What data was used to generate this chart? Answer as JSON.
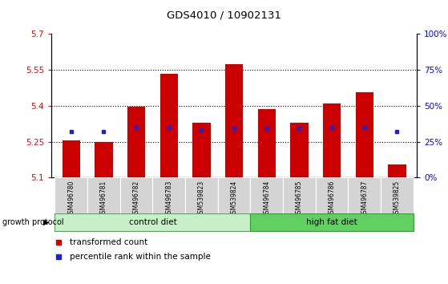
{
  "title": "GDS4010 / 10902131",
  "samples": [
    "GSM496780",
    "GSM496781",
    "GSM496782",
    "GSM496783",
    "GSM539823",
    "GSM539824",
    "GSM496784",
    "GSM496785",
    "GSM496786",
    "GSM496787",
    "GSM539825"
  ],
  "transformed_count": [
    5.255,
    5.25,
    5.395,
    5.535,
    5.33,
    5.575,
    5.385,
    5.33,
    5.41,
    5.455,
    5.155
  ],
  "percentile_rank": [
    32,
    32,
    35,
    35,
    33,
    34,
    34,
    34,
    35,
    35,
    32
  ],
  "ylim_left": [
    5.1,
    5.7
  ],
  "ylim_right": [
    0,
    100
  ],
  "yticks_left": [
    5.1,
    5.25,
    5.4,
    5.55,
    5.7
  ],
  "yticks_right": [
    0,
    25,
    50,
    75,
    100
  ],
  "ytick_labels_right": [
    "0%",
    "25%",
    "50%",
    "75%",
    "100%"
  ],
  "bar_color": "#cc0000",
  "percentile_color": "#2222cc",
  "bar_width": 0.55,
  "control_diet_indices": [
    0,
    1,
    2,
    3,
    4,
    5
  ],
  "high_fat_diet_indices": [
    6,
    7,
    8,
    9,
    10
  ],
  "control_diet_label": "control diet",
  "high_fat_diet_label": "high fat diet",
  "control_diet_color": "#c8f0c8",
  "high_fat_diet_color": "#60d060",
  "sample_box_color": "#d4d4d4",
  "growth_protocol_label": "growth protocol",
  "legend_bar_label": "transformed count",
  "legend_pct_label": "percentile rank within the sample",
  "base_value": 5.1,
  "dotted_lines": [
    5.25,
    5.4,
    5.55
  ],
  "plot_bg_color": "#ffffff"
}
